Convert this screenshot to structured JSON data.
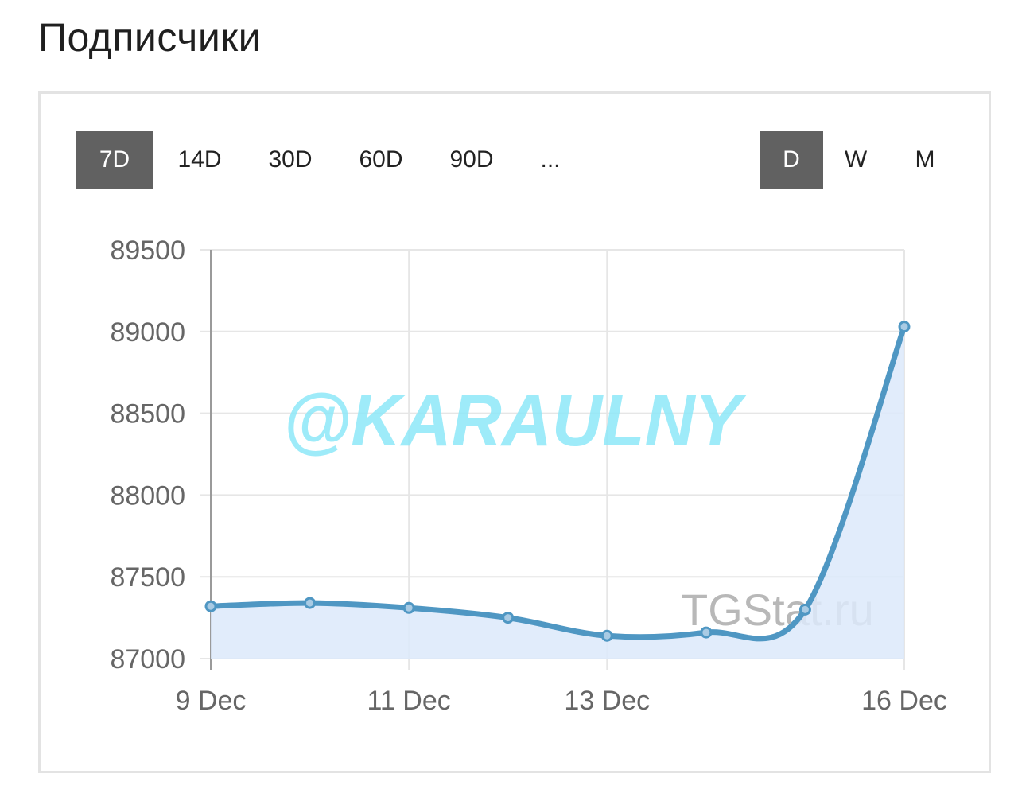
{
  "page": {
    "title": "Подписчики"
  },
  "toolbar": {
    "ranges": [
      "7D",
      "14D",
      "30D",
      "60D",
      "90D",
      "..."
    ],
    "active_range": "7D",
    "periods": [
      "D",
      "W",
      "M"
    ],
    "active_period": "D"
  },
  "watermarks": {
    "handle": "@KARAULNY",
    "site": "TGStat.ru"
  },
  "colors": {
    "line": "#4f97c3",
    "area": "#dce9fa",
    "active_button": "#616161",
    "grid": "#e6e6e6"
  },
  "chart_data": {
    "type": "area",
    "x": [
      "9 Dec",
      "10 Dec",
      "11 Dec",
      "12 Dec",
      "13 Dec",
      "14 Dec",
      "15 Dec",
      "16 Dec"
    ],
    "x_tick_labels": [
      "9 Dec",
      "11 Dec",
      "13 Dec",
      "16 Dec"
    ],
    "series": [
      {
        "values": [
          87320,
          87340,
          87310,
          87250,
          87140,
          87160,
          87300,
          89030
        ]
      }
    ],
    "ylim": [
      87000,
      89500
    ],
    "y_ticks": [
      87000,
      87500,
      88000,
      88500,
      89000,
      89500
    ],
    "y_tick_labels": [
      "87000",
      "87500",
      "88000",
      "88500",
      "89000",
      "89500"
    ],
    "grid": true,
    "smooth": true,
    "markers": true,
    "legend": "none"
  }
}
